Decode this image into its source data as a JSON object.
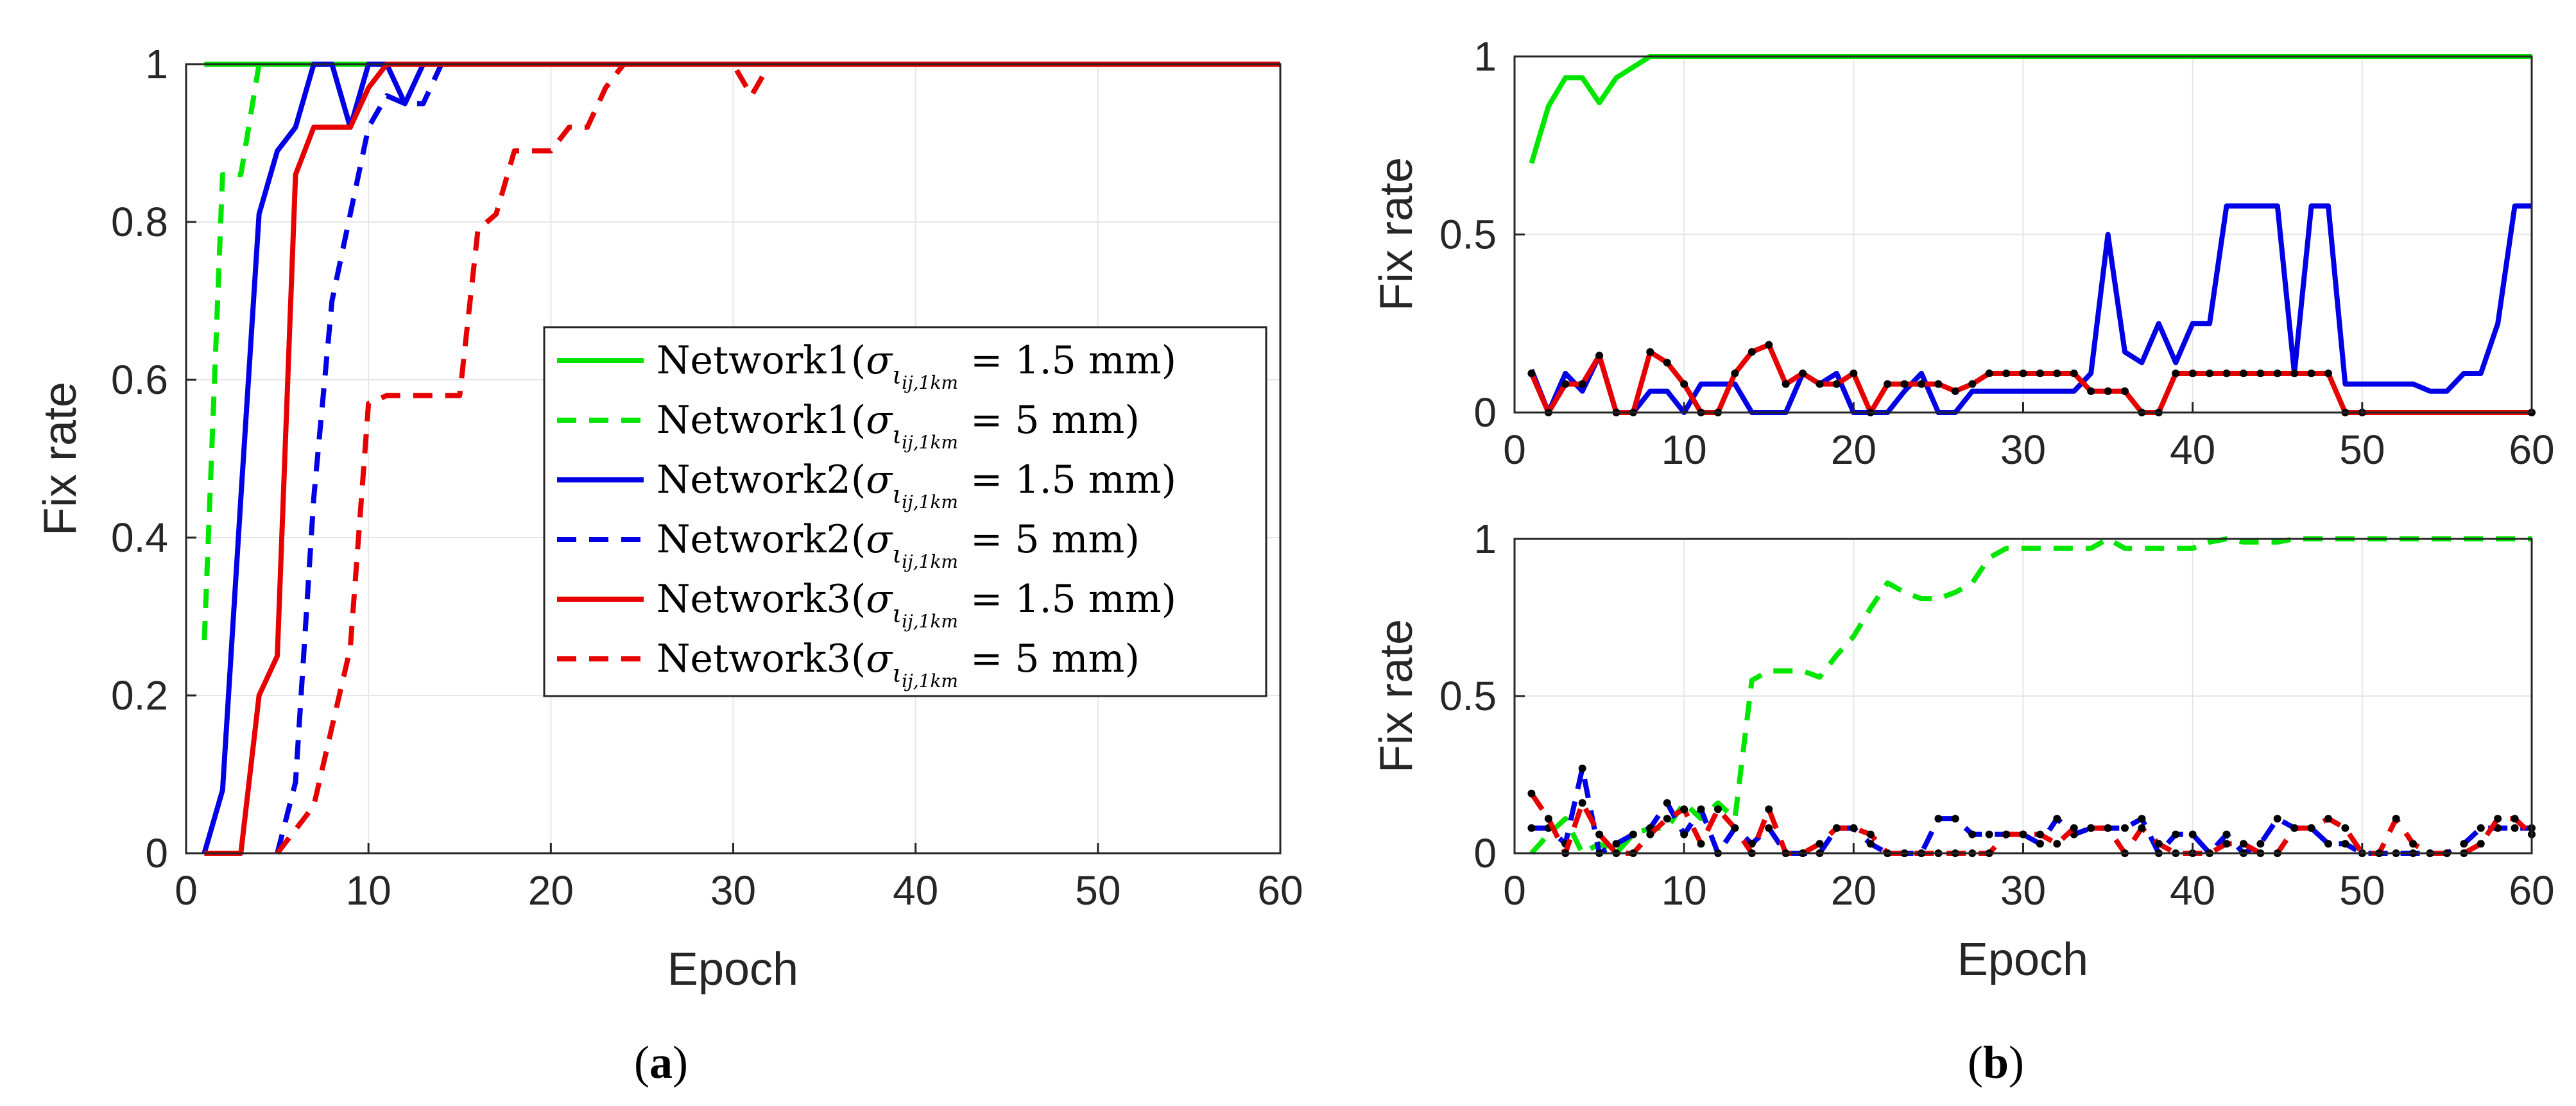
{
  "captions": {
    "a": "(a)",
    "b": "(b)"
  },
  "chart_data": [
    {
      "id": "a",
      "type": "line",
      "title": "",
      "xlabel": "Epoch",
      "ylabel": "Fix rate",
      "xlim": [
        0,
        60
      ],
      "ylim": [
        0,
        1
      ],
      "xticks": [
        "0",
        "10",
        "20",
        "30",
        "40",
        "50",
        "60"
      ],
      "yticks": [
        "0",
        "0.2",
        "0.4",
        "0.6",
        "0.8",
        "1"
      ],
      "grid": true,
      "legend": "center-right",
      "legend_math": {
        "sigma": "σ",
        "sub": "ι",
        "subscript": "ij,1km"
      },
      "series": [
        {
          "name": "Network1",
          "legend_pre": "Network1(",
          "legend_post": " = 1.5 mm)",
          "color": "#00e600",
          "dash": "solid",
          "x": [
            1,
            60
          ],
          "y": [
            1,
            1
          ]
        },
        {
          "name": "Network1",
          "legend_pre": "Network1(",
          "legend_post": " = 5 mm)",
          "color": "#00e600",
          "dash": "dashed",
          "x": [
            1,
            2,
            3,
            4,
            5,
            60
          ],
          "y": [
            0.27,
            0.86,
            0.86,
            1,
            1,
            1
          ]
        },
        {
          "name": "Network2",
          "legend_pre": "Network2(",
          "legend_post": " = 1.5 mm)",
          "color": "#0000e6",
          "dash": "solid",
          "x": [
            1,
            2,
            3,
            4,
            5,
            6,
            7,
            8,
            9,
            10,
            11,
            12,
            13,
            14,
            60
          ],
          "y": [
            0,
            0.08,
            0.45,
            0.81,
            0.89,
            0.92,
            1,
            1,
            0.92,
            1,
            1,
            0.95,
            1,
            1,
            1
          ]
        },
        {
          "name": "Network2",
          "legend_pre": "Network2(",
          "legend_post": " = 5 mm)",
          "color": "#0000e6",
          "dash": "dashed",
          "x": [
            5,
            6,
            7,
            8,
            9,
            10,
            11,
            12,
            13,
            14,
            60
          ],
          "y": [
            0,
            0.09,
            0.45,
            0.7,
            0.81,
            0.92,
            0.96,
            0.95,
            0.95,
            1,
            1
          ]
        },
        {
          "name": "Network3",
          "legend_pre": "Network3(",
          "legend_post": " = 1.5 mm)",
          "color": "#e60000",
          "dash": "solid",
          "x": [
            1,
            2,
            3,
            4,
            5,
            6,
            7,
            8,
            9,
            10,
            11,
            60
          ],
          "y": [
            0,
            0,
            0,
            0.2,
            0.25,
            0.86,
            0.92,
            0.92,
            0.92,
            0.97,
            1,
            1
          ]
        },
        {
          "name": "Network3",
          "legend_pre": "Network3(",
          "legend_post": " = 5 mm)",
          "color": "#e60000",
          "dash": "dashed",
          "x": [
            5,
            6,
            7,
            8,
            9,
            10,
            11,
            12,
            13,
            14,
            15,
            16,
            17,
            18,
            19,
            20,
            21,
            22,
            23,
            24,
            30,
            31,
            32,
            60
          ],
          "y": [
            0,
            0.03,
            0.06,
            0.16,
            0.26,
            0.57,
            0.58,
            0.58,
            0.58,
            0.58,
            0.58,
            0.79,
            0.81,
            0.89,
            0.89,
            0.89,
            0.92,
            0.92,
            0.97,
            1,
            1,
            0.96,
            1,
            1
          ]
        }
      ]
    },
    {
      "id": "b-top",
      "type": "line",
      "xlabel": "",
      "ylabel": "Fix rate",
      "xlim": [
        0,
        60
      ],
      "ylim": [
        0,
        1
      ],
      "xticks": [
        "0",
        "10",
        "20",
        "30",
        "40",
        "50",
        "60"
      ],
      "yticks": [
        "0",
        "0.5",
        "1"
      ],
      "grid": true,
      "series": [
        {
          "name": "Network1 (1.5 mm)",
          "color": "#00e600",
          "dash": "solid",
          "markers": false,
          "x": [
            1,
            2,
            3,
            4,
            5,
            6,
            7,
            8,
            60
          ],
          "y": [
            0.7,
            0.86,
            0.94,
            0.94,
            0.87,
            0.94,
            0.97,
            1,
            1
          ]
        },
        {
          "name": "Network2 (1.5 mm)",
          "color": "#0000e6",
          "dash": "solid",
          "markers": false,
          "x": [
            1,
            2,
            3,
            4,
            5,
            6,
            7,
            8,
            9,
            10,
            11,
            12,
            13,
            14,
            15,
            16,
            17,
            18,
            19,
            20,
            21,
            22,
            23,
            24,
            25,
            26,
            27,
            28,
            29,
            30,
            31,
            32,
            33,
            34,
            35,
            36,
            37,
            38,
            39,
            40,
            41,
            42,
            43,
            44,
            45,
            46,
            47,
            48,
            49,
            50,
            51,
            52,
            53,
            54,
            55,
            56,
            57,
            58,
            59,
            60
          ],
          "y": [
            0.12,
            0,
            0.11,
            0.06,
            0.16,
            0,
            0,
            0.06,
            0.06,
            0,
            0.08,
            0.08,
            0.08,
            0,
            0,
            0,
            0.11,
            0.08,
            0.11,
            0,
            0,
            0,
            0.06,
            0.11,
            0,
            0,
            0.06,
            0.06,
            0.06,
            0.06,
            0.06,
            0.06,
            0.06,
            0.11,
            0.5,
            0.17,
            0.14,
            0.25,
            0.14,
            0.25,
            0.25,
            0.58,
            0.58,
            0.58,
            0.58,
            0.11,
            0.58,
            0.58,
            0.08,
            0.08,
            0.08,
            0.08,
            0.08,
            0.06,
            0.06,
            0.11,
            0.11,
            0.25,
            0.58,
            0.58
          ]
        },
        {
          "name": "Network3 (1.5 mm)",
          "color": "#e60000",
          "dash": "solid",
          "markers": true,
          "x": [
            1,
            2,
            3,
            4,
            5,
            6,
            7,
            8,
            9,
            10,
            11,
            12,
            13,
            14,
            15,
            16,
            17,
            18,
            19,
            20,
            21,
            22,
            23,
            24,
            25,
            26,
            27,
            28,
            29,
            30,
            31,
            32,
            33,
            34,
            35,
            36,
            37,
            38,
            39,
            40,
            41,
            42,
            43,
            44,
            45,
            46,
            47,
            48,
            49,
            50,
            60
          ],
          "y": [
            0.11,
            0,
            0.08,
            0.08,
            0.16,
            0,
            0,
            0.17,
            0.14,
            0.08,
            0,
            0,
            0.11,
            0.17,
            0.19,
            0.08,
            0.11,
            0.08,
            0.08,
            0.11,
            0,
            0.08,
            0.08,
            0.08,
            0.08,
            0.06,
            0.08,
            0.11,
            0.11,
            0.11,
            0.11,
            0.11,
            0.11,
            0.06,
            0.06,
            0.06,
            0,
            0,
            0.11,
            0.11,
            0.11,
            0.11,
            0.11,
            0.11,
            0.11,
            0.11,
            0.11,
            0.11,
            0,
            0,
            0
          ]
        }
      ]
    },
    {
      "id": "b-bottom",
      "type": "line",
      "xlabel": "Epoch",
      "ylabel": "Fix rate",
      "xlim": [
        0,
        60
      ],
      "ylim": [
        0,
        1
      ],
      "xticks": [
        "0",
        "10",
        "20",
        "30",
        "40",
        "50",
        "60"
      ],
      "yticks": [
        "0",
        "0.5",
        "1"
      ],
      "grid": true,
      "series": [
        {
          "name": "Network1 (5 mm)",
          "color": "#00e600",
          "dash": "dashed",
          "markers": false,
          "x": [
            1,
            2,
            3,
            4,
            5,
            6,
            7,
            8,
            9,
            10,
            11,
            12,
            13,
            14,
            15,
            16,
            17,
            18,
            19,
            20,
            21,
            22,
            23,
            24,
            25,
            26,
            27,
            28,
            29,
            30,
            31,
            32,
            33,
            34,
            35,
            36,
            37,
            38,
            39,
            40,
            41,
            42,
            43,
            44,
            45,
            46,
            47,
            48,
            49,
            50,
            51,
            52,
            53,
            54,
            55,
            56,
            57,
            58,
            59,
            60
          ],
          "y": [
            0,
            0.06,
            0.11,
            0,
            0.03,
            0,
            0.06,
            0.08,
            0.08,
            0.16,
            0.11,
            0.16,
            0.11,
            0.55,
            0.58,
            0.58,
            0.58,
            0.56,
            0.63,
            0.69,
            0.78,
            0.86,
            0.83,
            0.81,
            0.81,
            0.83,
            0.86,
            0.94,
            0.97,
            0.97,
            0.97,
            0.97,
            0.97,
            0.97,
            1,
            0.97,
            0.97,
            0.97,
            0.97,
            0.97,
            0.99,
            1,
            0.99,
            0.99,
            0.99,
            1,
            1,
            1,
            1,
            1,
            1,
            1,
            1,
            1,
            1,
            1,
            1,
            1,
            1,
            1
          ]
        },
        {
          "name": "Network2 (5 mm)",
          "color": "#0000e6",
          "dash": "dashed",
          "markers": true,
          "x": [
            1,
            2,
            3,
            4,
            5,
            6,
            7,
            8,
            9,
            10,
            11,
            12,
            13,
            14,
            15,
            16,
            17,
            18,
            19,
            20,
            21,
            22,
            23,
            24,
            25,
            26,
            27,
            28,
            29,
            30,
            31,
            32,
            33,
            34,
            35,
            36,
            37,
            38,
            39,
            40,
            41,
            42,
            43,
            44,
            45,
            46,
            47,
            48,
            49,
            50,
            51,
            52,
            53,
            54,
            55,
            56,
            57,
            58,
            59,
            60
          ],
          "y": [
            0.08,
            0.08,
            0.03,
            0.27,
            0,
            0.03,
            0.06,
            0.08,
            0.16,
            0.06,
            0.14,
            0,
            0.08,
            0.03,
            0.08,
            0,
            0,
            0,
            0.08,
            0.08,
            0.03,
            0,
            0,
            0,
            0.11,
            0.11,
            0.06,
            0.06,
            0.06,
            0.06,
            0.03,
            0.11,
            0.06,
            0.08,
            0.08,
            0.08,
            0.11,
            0,
            0.06,
            0.06,
            0,
            0.06,
            0,
            0.03,
            0.11,
            0.08,
            0.08,
            0.03,
            0.03,
            0,
            0,
            0,
            0,
            0,
            0,
            0.03,
            0.08,
            0.08,
            0.08,
            0.08
          ]
        },
        {
          "name": "Network3 (5 mm)",
          "color": "#e60000",
          "dash": "dashed",
          "markers": true,
          "x": [
            1,
            2,
            3,
            4,
            5,
            6,
            7,
            8,
            9,
            10,
            11,
            12,
            13,
            14,
            15,
            16,
            17,
            18,
            19,
            20,
            21,
            22,
            23,
            24,
            25,
            26,
            27,
            28,
            29,
            30,
            31,
            32,
            33,
            34,
            35,
            36,
            37,
            38,
            39,
            40,
            41,
            42,
            43,
            44,
            45,
            46,
            47,
            48,
            49,
            50,
            51,
            52,
            53,
            54,
            55,
            56,
            57,
            58,
            59,
            60
          ],
          "y": [
            0.19,
            0.11,
            0,
            0.16,
            0.06,
            0,
            0,
            0.06,
            0.11,
            0.14,
            0.03,
            0.14,
            0.08,
            0,
            0.14,
            0,
            0,
            0.03,
            0.08,
            0.08,
            0.06,
            0,
            0,
            0,
            0,
            0,
            0,
            0,
            0.06,
            0.06,
            0.06,
            0.03,
            0.08,
            0.08,
            0.08,
            0,
            0.08,
            0.03,
            0,
            0,
            0,
            0.03,
            0.03,
            0,
            0,
            0.08,
            0.08,
            0.11,
            0.08,
            0,
            0,
            0.11,
            0.03,
            0,
            0,
            0,
            0.03,
            0.11,
            0.11,
            0.06
          ]
        }
      ]
    }
  ]
}
